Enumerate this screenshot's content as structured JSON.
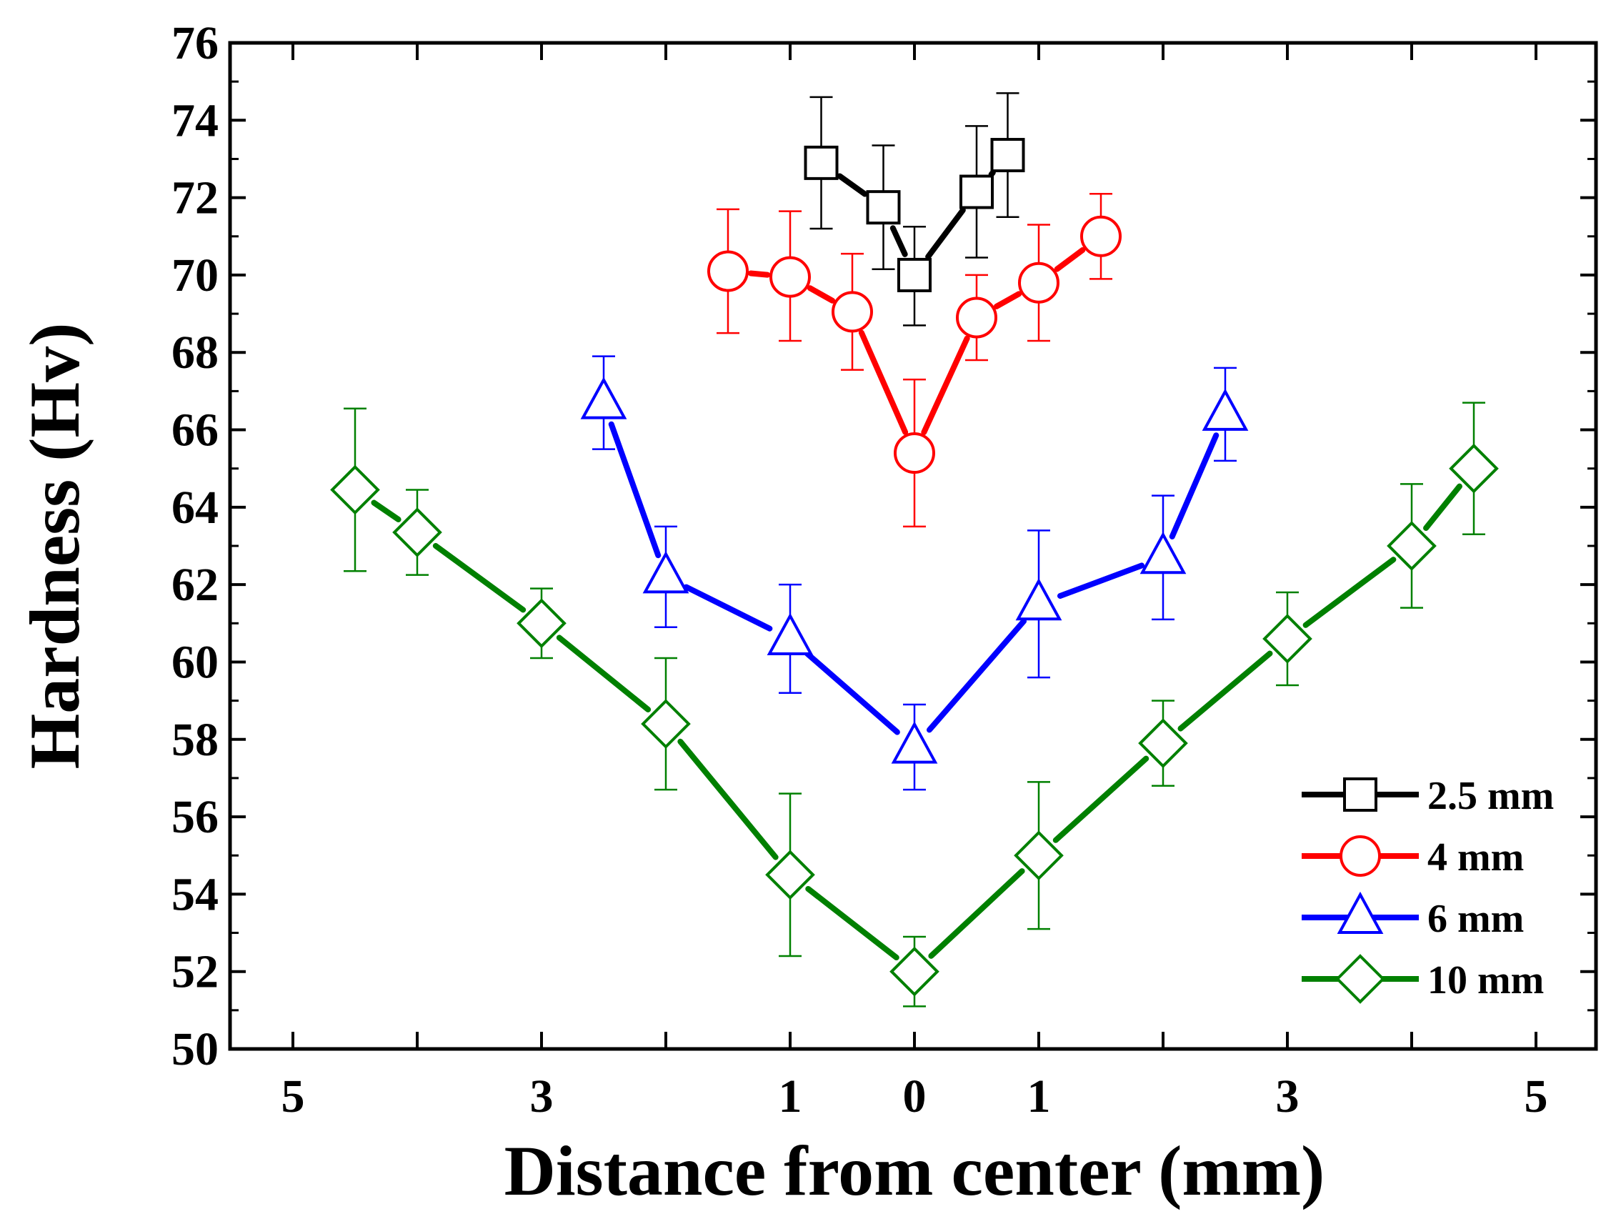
{
  "chart_data": {
    "type": "line",
    "title": "",
    "xlabel": "Distance from center (mm)",
    "ylabel": "Hardness (Hv)",
    "xlim": [
      -5.5,
      5.5
    ],
    "ylim": [
      50,
      76
    ],
    "x_ticks": [
      {
        "value": -5,
        "label": "5"
      },
      {
        "value": -3,
        "label": "3"
      },
      {
        "value": -1,
        "label": "1"
      },
      {
        "value": 0,
        "label": "0"
      },
      {
        "value": 1,
        "label": "1"
      },
      {
        "value": 3,
        "label": "3"
      },
      {
        "value": 5,
        "label": "5"
      }
    ],
    "x_minor_ticks": [
      -4,
      -2,
      2,
      4
    ],
    "y_ticks": [
      {
        "value": 50,
        "label": "50"
      },
      {
        "value": 52,
        "label": "52"
      },
      {
        "value": 54,
        "label": "54"
      },
      {
        "value": 56,
        "label": "56"
      },
      {
        "value": 58,
        "label": "58"
      },
      {
        "value": 60,
        "label": "60"
      },
      {
        "value": 62,
        "label": "62"
      },
      {
        "value": 64,
        "label": "64"
      },
      {
        "value": 66,
        "label": "66"
      },
      {
        "value": 68,
        "label": "68"
      },
      {
        "value": 70,
        "label": "70"
      },
      {
        "value": 72,
        "label": "72"
      },
      {
        "value": 74,
        "label": "74"
      },
      {
        "value": 76,
        "label": "76"
      }
    ],
    "grid": false,
    "legend_position": "bottom-right",
    "series": [
      {
        "name": "2.5 mm",
        "color": "#000000",
        "marker": "square",
        "x": [
          -0.75,
          -0.25,
          0,
          0.5,
          0.75
        ],
        "y": [
          72.9,
          71.75,
          70.0,
          72.15,
          73.1
        ],
        "err_low": [
          1.7,
          1.6,
          1.3,
          1.7,
          1.6
        ],
        "err_high": [
          1.7,
          1.6,
          1.25,
          1.7,
          1.6
        ]
      },
      {
        "name": "4 mm",
        "color": "#ff0000",
        "marker": "circle",
        "x": [
          -1.5,
          -1.0,
          -0.5,
          0,
          0.5,
          1.0,
          1.5
        ],
        "y": [
          70.1,
          69.95,
          69.05,
          65.4,
          68.9,
          69.8,
          71.0
        ],
        "err_low": [
          1.6,
          1.65,
          1.5,
          1.9,
          1.1,
          1.5,
          1.1
        ],
        "err_high": [
          1.6,
          1.7,
          1.5,
          1.9,
          1.1,
          1.5,
          1.1
        ]
      },
      {
        "name": "6 mm",
        "color": "#0000ff",
        "marker": "triangle",
        "x": [
          -2.5,
          -2.0,
          -1.0,
          0,
          1.0,
          2.0,
          2.5
        ],
        "y": [
          66.7,
          62.2,
          60.6,
          57.8,
          61.5,
          62.7,
          66.4
        ],
        "err_low": [
          1.2,
          1.3,
          1.4,
          1.1,
          1.9,
          1.6,
          1.2
        ],
        "err_high": [
          1.2,
          1.3,
          1.4,
          1.1,
          1.9,
          1.6,
          1.2
        ]
      },
      {
        "name": "10 mm",
        "color": "#008000",
        "marker": "diamond",
        "x": [
          -4.5,
          -4.0,
          -3.0,
          -2.0,
          -1.0,
          0,
          1.0,
          2.0,
          3.0,
          4.0,
          4.5
        ],
        "y": [
          64.45,
          63.35,
          61.0,
          58.4,
          54.5,
          52.0,
          55.0,
          57.9,
          60.6,
          63.0,
          65.0
        ],
        "err_low": [
          2.1,
          1.1,
          0.9,
          1.7,
          2.1,
          0.9,
          1.9,
          1.1,
          1.2,
          1.6,
          1.7
        ],
        "err_high": [
          2.1,
          1.1,
          0.9,
          1.7,
          2.1,
          0.9,
          1.9,
          1.1,
          1.2,
          1.6,
          1.7
        ]
      }
    ]
  }
}
